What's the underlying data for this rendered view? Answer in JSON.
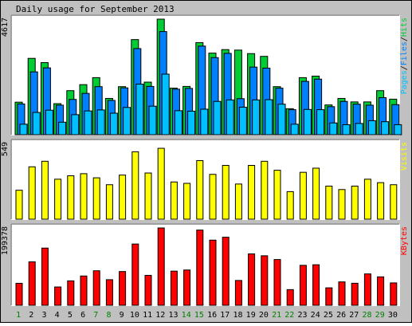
{
  "title": "Daily usage for September 2013",
  "colors": {
    "hits": "#00CC33",
    "files": "#0080FF",
    "pages": "#00C0FF",
    "visits": "#FFFF00",
    "kbytes": "#FF0000",
    "background": "#C0C0C0",
    "panel": "#FFFFFF",
    "weekday_label": "#000000",
    "weekend_label": "#008000"
  },
  "chart_data": [
    {
      "type": "bar",
      "title": "Daily usage for September 2013",
      "panel": "hits-files-pages",
      "axis_max_label": "4617",
      "ylim": [
        0,
        4617
      ],
      "series_label_parts": [
        "Pages",
        "/",
        "Files",
        "/",
        "Hits"
      ],
      "categories": [
        "1",
        "2",
        "3",
        "4",
        "5",
        "6",
        "7",
        "8",
        "9",
        "10",
        "11",
        "12",
        "13",
        "14",
        "15",
        "16",
        "17",
        "18",
        "19",
        "20",
        "21",
        "22",
        "23",
        "24",
        "25",
        "26",
        "27",
        "28",
        "29",
        "30"
      ],
      "weekend_days": [
        "1",
        "7",
        "8",
        "14",
        "15",
        "21",
        "22",
        "28",
        "29"
      ],
      "series": [
        {
          "name": "Hits",
          "values": [
            1300,
            3050,
            2880,
            1240,
            1760,
            2000,
            2280,
            1450,
            1920,
            3800,
            2100,
            4617,
            1860,
            1930,
            3680,
            3260,
            3400,
            3380,
            3240,
            3130,
            1920,
            1040,
            2280,
            2340,
            1190,
            1450,
            1310,
            1310,
            1760,
            1420
          ]
        },
        {
          "name": "Files",
          "values": [
            1230,
            2510,
            2670,
            1180,
            1410,
            1650,
            1920,
            1370,
            1870,
            3440,
            1930,
            4120,
            1820,
            1850,
            3540,
            3080,
            3250,
            1440,
            2700,
            2660,
            1860,
            1000,
            2130,
            2220,
            1120,
            1330,
            1220,
            1180,
            1480,
            1200
          ]
        },
        {
          "name": "Pages",
          "values": [
            420,
            890,
            980,
            500,
            800,
            950,
            990,
            860,
            1090,
            2020,
            1140,
            2420,
            960,
            940,
            1020,
            1330,
            1390,
            1100,
            1390,
            1400,
            1220,
            420,
            1010,
            1000,
            470,
            400,
            450,
            560,
            520,
            400
          ]
        }
      ]
    },
    {
      "type": "bar",
      "panel": "visits",
      "axis_max_label": "549",
      "ylim": [
        0,
        549
      ],
      "series_label": "Visits",
      "categories": [
        "1",
        "2",
        "3",
        "4",
        "5",
        "6",
        "7",
        "8",
        "9",
        "10",
        "11",
        "12",
        "13",
        "14",
        "15",
        "16",
        "17",
        "18",
        "19",
        "20",
        "21",
        "22",
        "23",
        "24",
        "25",
        "26",
        "27",
        "28",
        "29",
        "30"
      ],
      "series": [
        {
          "name": "Visits",
          "values": [
            210,
            380,
            420,
            290,
            315,
            330,
            300,
            250,
            320,
            489,
            335,
            514,
            270,
            260,
            425,
            325,
            390,
            255,
            390,
            420,
            355,
            200,
            340,
            370,
            240,
            215,
            240,
            290,
            265,
            250
          ]
        }
      ]
    },
    {
      "type": "bar",
      "panel": "kbytes",
      "axis_max_label": "199378",
      "ylim": [
        0,
        199378
      ],
      "series_label": "KBytes",
      "categories": [
        "1",
        "2",
        "3",
        "4",
        "5",
        "6",
        "7",
        "8",
        "9",
        "10",
        "11",
        "12",
        "13",
        "14",
        "15",
        "16",
        "17",
        "18",
        "19",
        "20",
        "21",
        "22",
        "23",
        "24",
        "25",
        "26",
        "27",
        "28",
        "29",
        "30"
      ],
      "series": [
        {
          "name": "KBytes",
          "values": [
            56700,
            112000,
            147500,
            47200,
            63000,
            75500,
            89000,
            66000,
            87000,
            158000,
            77200,
            199378,
            88000,
            91000,
            194000,
            168000,
            175500,
            64000,
            132500,
            127700,
            118000,
            40400,
            103000,
            104500,
            45000,
            60300,
            56800,
            80900,
            73300,
            57700
          ]
        }
      ]
    }
  ]
}
